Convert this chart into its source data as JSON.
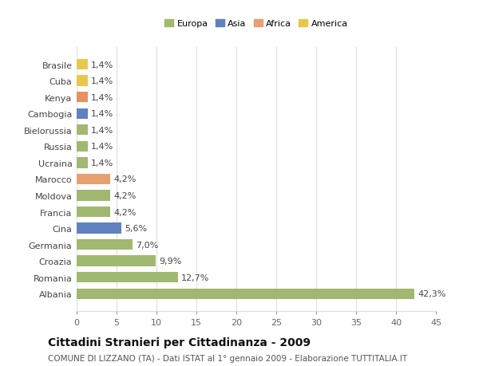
{
  "categories": [
    "Brasile",
    "Cuba",
    "Kenya",
    "Cambogia",
    "Bielorussia",
    "Russia",
    "Ucraina",
    "Marocco",
    "Moldova",
    "Francia",
    "Cina",
    "Germania",
    "Croazia",
    "Romania",
    "Albania"
  ],
  "values": [
    1.4,
    1.4,
    1.4,
    1.4,
    1.4,
    1.4,
    1.4,
    4.2,
    4.2,
    4.2,
    5.6,
    7.0,
    9.9,
    12.7,
    42.3
  ],
  "colors": [
    "#e8c84a",
    "#e8c84a",
    "#e89060",
    "#6080c0",
    "#a0b870",
    "#a0b870",
    "#a0b870",
    "#e8a070",
    "#a0b870",
    "#a0b870",
    "#6080c0",
    "#a0b870",
    "#a0b870",
    "#a0b870",
    "#a0b870"
  ],
  "labels": [
    "1,4%",
    "1,4%",
    "1,4%",
    "1,4%",
    "1,4%",
    "1,4%",
    "1,4%",
    "4,2%",
    "4,2%",
    "4,2%",
    "5,6%",
    "7,0%",
    "9,9%",
    "12,7%",
    "42,3%"
  ],
  "xlim": [
    0,
    45
  ],
  "xticks": [
    0,
    5,
    10,
    15,
    20,
    25,
    30,
    35,
    40,
    45
  ],
  "title": "Cittadini Stranieri per Cittadinanza - 2009",
  "subtitle": "COMUNE DI LIZZANO (TA) - Dati ISTAT al 1° gennaio 2009 - Elaborazione TUTTITALIA.IT",
  "legend_labels": [
    "Europa",
    "Asia",
    "Africa",
    "America"
  ],
  "legend_colors": [
    "#a0b870",
    "#6080c0",
    "#e8a070",
    "#e8c84a"
  ],
  "bg_color": "#ffffff",
  "plot_bg_color": "#ffffff",
  "bar_height": 0.65,
  "grid_color": "#e0e0e0",
  "label_fontsize": 8,
  "title_fontsize": 10,
  "subtitle_fontsize": 7.5
}
